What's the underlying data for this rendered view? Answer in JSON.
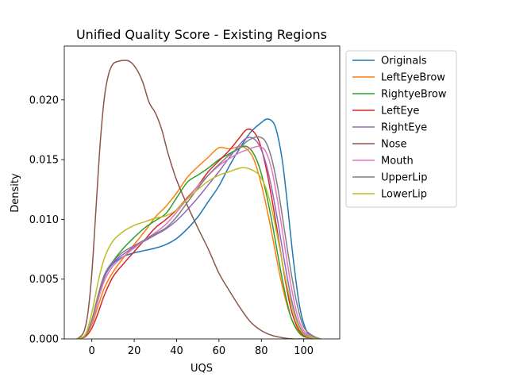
{
  "chart_data": {
    "type": "line",
    "title": "Unified Quality Score - Existing Regions",
    "xlabel": "UQS",
    "ylabel": "Density",
    "xlim": [
      -13,
      117
    ],
    "ylim": [
      0,
      0.0245
    ],
    "xticks": [
      0,
      20,
      40,
      60,
      80,
      100
    ],
    "xtick_labels": [
      "0",
      "20",
      "40",
      "60",
      "80",
      "100"
    ],
    "yticks": [
      0,
      0.005,
      0.01,
      0.015,
      0.02
    ],
    "ytick_labels": [
      "0.000",
      "0.005",
      "0.010",
      "0.015",
      "0.020"
    ],
    "grid": false,
    "legend_position": "outside-right",
    "series": [
      {
        "name": "Originals",
        "color": "#1f77b4",
        "x": [
          -7,
          -3,
          0,
          3,
          6,
          10,
          15,
          20,
          25,
          30,
          35,
          40,
          45,
          50,
          55,
          60,
          65,
          70,
          75,
          80,
          83,
          86,
          88,
          90,
          92,
          95,
          98,
          101,
          104,
          108
        ],
        "y": [
          0,
          0.0003,
          0.0015,
          0.0035,
          0.0052,
          0.0063,
          0.0069,
          0.0072,
          0.0074,
          0.0076,
          0.0079,
          0.0084,
          0.0092,
          0.0102,
          0.0115,
          0.0128,
          0.0145,
          0.016,
          0.0173,
          0.0181,
          0.0184,
          0.018,
          0.0168,
          0.0148,
          0.0118,
          0.0068,
          0.0028,
          0.0008,
          0.0002,
          0
        ]
      },
      {
        "name": "LeftEyeBrow",
        "color": "#ff7f0e",
        "x": [
          -7,
          -3,
          0,
          3,
          6,
          10,
          15,
          20,
          25,
          30,
          35,
          40,
          45,
          50,
          55,
          60,
          65,
          70,
          73,
          76,
          79,
          82,
          85,
          88,
          91,
          94,
          97,
          100,
          104,
          108
        ],
        "y": [
          0,
          0.0003,
          0.0012,
          0.0028,
          0.0043,
          0.0056,
          0.0068,
          0.0079,
          0.009,
          0.0102,
          0.0111,
          0.0122,
          0.0135,
          0.0144,
          0.0152,
          0.016,
          0.0159,
          0.0161,
          0.0159,
          0.0152,
          0.0136,
          0.0114,
          0.0088,
          0.006,
          0.0036,
          0.0018,
          0.0008,
          0.0002,
          0.0001,
          0
        ]
      },
      {
        "name": "RightyeBrow",
        "color": "#2ca02c",
        "x": [
          -7,
          -3,
          0,
          3,
          6,
          10,
          15,
          20,
          25,
          30,
          35,
          40,
          45,
          50,
          55,
          60,
          65,
          70,
          73,
          76,
          79,
          82,
          85,
          88,
          91,
          94,
          97,
          100,
          104,
          108
        ],
        "y": [
          0,
          0.0003,
          0.0014,
          0.0033,
          0.0052,
          0.0065,
          0.0076,
          0.0085,
          0.0093,
          0.0099,
          0.0105,
          0.0118,
          0.0131,
          0.0137,
          0.0143,
          0.015,
          0.0155,
          0.016,
          0.0161,
          0.0156,
          0.0144,
          0.0124,
          0.0098,
          0.0068,
          0.004,
          0.0018,
          0.0007,
          0.0002,
          0.0001,
          0
        ]
      },
      {
        "name": "LeftEye",
        "color": "#d62728",
        "x": [
          -7,
          -3,
          0,
          3,
          6,
          10,
          15,
          20,
          25,
          30,
          35,
          40,
          45,
          50,
          55,
          60,
          65,
          70,
          73,
          76,
          79,
          82,
          85,
          88,
          91,
          94,
          97,
          100,
          104,
          108
        ],
        "y": [
          0,
          0.0002,
          0.0009,
          0.0022,
          0.0037,
          0.0052,
          0.0063,
          0.0073,
          0.0083,
          0.0093,
          0.01,
          0.0108,
          0.0118,
          0.0128,
          0.014,
          0.0149,
          0.0158,
          0.0169,
          0.0175,
          0.0174,
          0.0165,
          0.0145,
          0.0117,
          0.0085,
          0.0052,
          0.0025,
          0.001,
          0.0003,
          0.0001,
          0
        ]
      },
      {
        "name": "RightEye",
        "color": "#9467bd",
        "x": [
          -7,
          -3,
          0,
          3,
          6,
          10,
          15,
          20,
          25,
          30,
          35,
          40,
          45,
          50,
          55,
          60,
          65,
          70,
          73,
          76,
          79,
          82,
          85,
          88,
          91,
          94,
          97,
          100,
          104,
          108
        ],
        "y": [
          0,
          0.0003,
          0.0015,
          0.0035,
          0.0052,
          0.0064,
          0.0071,
          0.0077,
          0.0082,
          0.0087,
          0.0092,
          0.0099,
          0.0108,
          0.0118,
          0.0129,
          0.014,
          0.0152,
          0.0163,
          0.0168,
          0.0168,
          0.0162,
          0.0148,
          0.0125,
          0.0096,
          0.0064,
          0.0035,
          0.0015,
          0.0005,
          0.0001,
          0
        ]
      },
      {
        "name": "Nose",
        "color": "#8c564b",
        "x": [
          -7,
          -4,
          -2,
          0,
          2,
          4,
          6,
          8,
          10,
          12,
          15,
          18,
          21,
          24,
          27,
          30,
          33,
          36,
          40,
          45,
          50,
          55,
          60,
          65,
          70,
          75,
          80,
          85,
          90,
          95,
          100,
          104
        ],
        "y": [
          0,
          0.0005,
          0.002,
          0.0055,
          0.011,
          0.0165,
          0.0203,
          0.0222,
          0.023,
          0.0232,
          0.0233,
          0.0232,
          0.0226,
          0.0215,
          0.0198,
          0.0189,
          0.0175,
          0.0155,
          0.0133,
          0.0112,
          0.0093,
          0.0075,
          0.0055,
          0.004,
          0.0026,
          0.0014,
          0.0007,
          0.0003,
          0.0001,
          0,
          0,
          0
        ]
      },
      {
        "name": "Mouth",
        "color": "#e377c2",
        "x": [
          -7,
          -3,
          0,
          3,
          6,
          10,
          15,
          20,
          25,
          30,
          35,
          40,
          45,
          50,
          55,
          60,
          65,
          70,
          73,
          76,
          79,
          82,
          85,
          88,
          91,
          94,
          97,
          100,
          104,
          108
        ],
        "y": [
          0,
          0.0003,
          0.0014,
          0.0033,
          0.0049,
          0.0061,
          0.0069,
          0.0076,
          0.0083,
          0.0089,
          0.0096,
          0.0106,
          0.0117,
          0.0128,
          0.0137,
          0.0145,
          0.0151,
          0.0156,
          0.0158,
          0.016,
          0.0161,
          0.0157,
          0.0141,
          0.0112,
          0.0078,
          0.0045,
          0.002,
          0.0007,
          0.0002,
          0
        ]
      },
      {
        "name": "UpperLip",
        "color": "#7f7f7f",
        "x": [
          -7,
          -3,
          0,
          3,
          6,
          10,
          15,
          20,
          25,
          30,
          35,
          40,
          45,
          50,
          55,
          60,
          65,
          70,
          73,
          76,
          79,
          82,
          85,
          88,
          91,
          94,
          97,
          100,
          104,
          108
        ],
        "y": [
          0,
          0.0003,
          0.0016,
          0.0037,
          0.0054,
          0.0065,
          0.0073,
          0.0078,
          0.0083,
          0.0088,
          0.0093,
          0.0102,
          0.0114,
          0.0126,
          0.0137,
          0.0146,
          0.0154,
          0.016,
          0.0165,
          0.0168,
          0.0169,
          0.0165,
          0.015,
          0.0124,
          0.009,
          0.0056,
          0.0028,
          0.001,
          0.0003,
          0
        ]
      },
      {
        "name": "LowerLip",
        "color": "#bcbd22",
        "x": [
          -7,
          -3,
          0,
          3,
          6,
          10,
          15,
          20,
          25,
          30,
          35,
          40,
          45,
          50,
          55,
          60,
          65,
          70,
          73,
          76,
          79,
          82,
          85,
          88,
          91,
          94,
          97,
          100,
          104,
          108
        ],
        "y": [
          0,
          0.0004,
          0.0022,
          0.0048,
          0.0068,
          0.0082,
          0.009,
          0.0095,
          0.0098,
          0.0101,
          0.0103,
          0.0108,
          0.0117,
          0.0125,
          0.0132,
          0.0137,
          0.014,
          0.0143,
          0.0143,
          0.0141,
          0.0137,
          0.0127,
          0.0108,
          0.0082,
          0.0054,
          0.003,
          0.0013,
          0.0004,
          0.0001,
          0
        ]
      }
    ]
  }
}
